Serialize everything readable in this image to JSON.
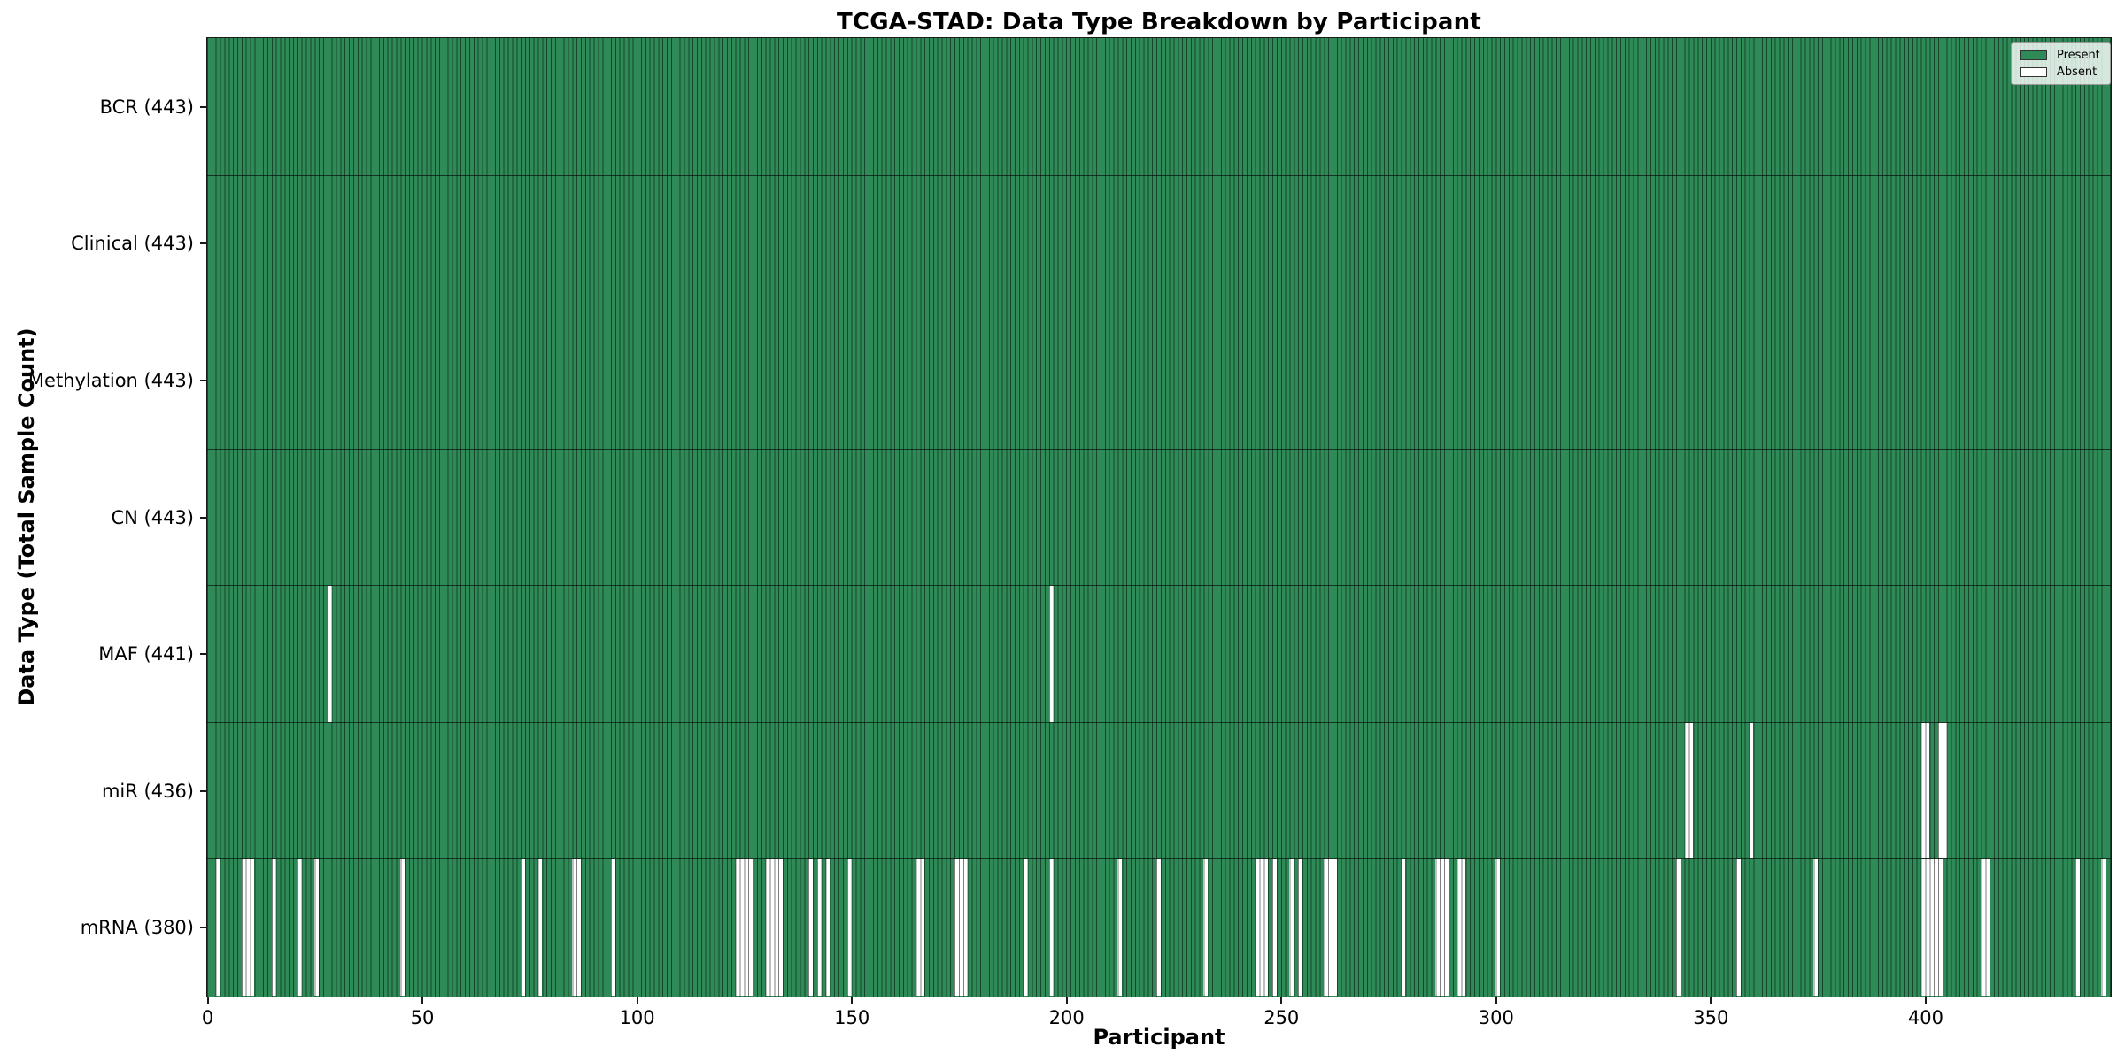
{
  "chart_data": {
    "type": "heatmap",
    "title": "TCGA-STAD: Data Type Breakdown by Participant",
    "xlabel": "Participant",
    "ylabel": "Data Type (Total Sample Count)",
    "x_ticks": [
      0,
      50,
      100,
      150,
      200,
      250,
      300,
      350,
      400
    ],
    "x_range": [
      0,
      443
    ],
    "n_participants": 443,
    "grid": false,
    "colors": {
      "present": "#2e8b57",
      "absent": "#ffffff",
      "cell_edge": "rgba(0,0,0,0.5)"
    },
    "legend": {
      "position": "upper right",
      "entries": [
        {
          "label": "Present",
          "color": "#2e8b57"
        },
        {
          "label": "Absent",
          "color": "#ffffff"
        }
      ]
    },
    "rows": [
      {
        "data_type": "BCR",
        "label": "BCR (443)",
        "present_count": 443,
        "absent_participants": []
      },
      {
        "data_type": "Clinical",
        "label": "Clinical (443)",
        "present_count": 443,
        "absent_participants": []
      },
      {
        "data_type": "Methylation",
        "label": "Methylation (443)",
        "present_count": 443,
        "absent_participants": []
      },
      {
        "data_type": "CN",
        "label": "CN (443)",
        "present_count": 443,
        "absent_participants": []
      },
      {
        "data_type": "MAF",
        "label": "MAF (441)",
        "present_count": 441,
        "absent_participants": [
          28,
          196
        ]
      },
      {
        "data_type": "miR",
        "label": "miR (436)",
        "present_count": 436,
        "absent_participants": [
          344,
          345,
          359,
          399,
          400,
          403,
          404
        ]
      },
      {
        "data_type": "mRNA",
        "label": "mRNA (380)",
        "present_count": 380,
        "absent_participants": [
          2,
          8,
          9,
          10,
          15,
          21,
          25,
          45,
          73,
          77,
          85,
          86,
          94,
          123,
          124,
          125,
          126,
          130,
          131,
          132,
          133,
          140,
          142,
          144,
          149,
          165,
          166,
          174,
          175,
          176,
          190,
          196,
          212,
          221,
          232,
          244,
          245,
          246,
          248,
          252,
          254,
          260,
          261,
          262,
          278,
          286,
          287,
          288,
          291,
          292,
          300,
          342,
          356,
          374,
          399,
          400,
          401,
          402,
          403,
          413,
          414,
          435,
          441
        ]
      }
    ]
  }
}
